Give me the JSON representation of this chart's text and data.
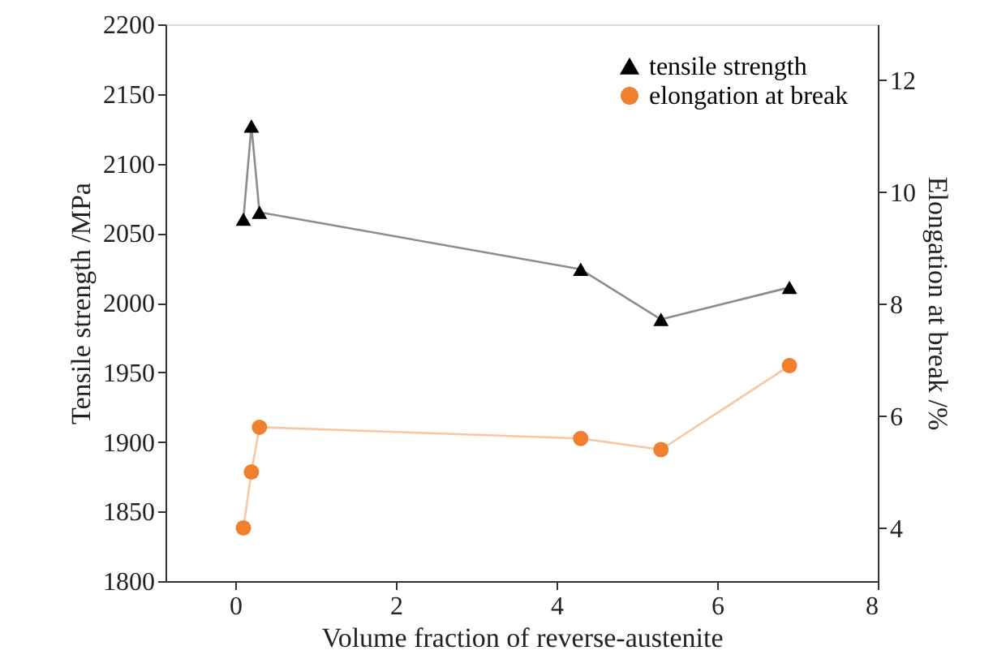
{
  "chart_data": {
    "type": "line",
    "xlabel": "Volume fraction of reverse-austenite",
    "ylabel": "Tensile strength /MPa",
    "y2label": "Elongation at break /%",
    "xlim": [
      -0.87,
      8
    ],
    "xticks": [
      0,
      2,
      4,
      6,
      8
    ],
    "ylim": [
      1800,
      2200
    ],
    "yticks": [
      1800,
      1850,
      1900,
      1950,
      2000,
      2050,
      2100,
      2150,
      2200
    ],
    "y2lim": [
      3.05,
      13.0
    ],
    "y2ticks": [
      4,
      6,
      8,
      10,
      12
    ],
    "grid": false,
    "legend": "top right",
    "series": [
      {
        "name": "tensile strength",
        "color": "#000000",
        "marker": "triangle",
        "x": [
          0.1,
          0.2,
          0.3,
          4.3,
          5.3,
          6.9
        ],
        "values": [
          2060,
          2127,
          2065,
          2024,
          1988,
          2011
        ]
      },
      {
        "name": "elongation at break",
        "color": "#f08030",
        "marker": "circle",
        "axis": "y2",
        "x": [
          0.1,
          0.2,
          0.3,
          4.3,
          5.3,
          6.9
        ],
        "values": [
          4.0,
          5.0,
          5.8,
          5.6,
          5.4,
          6.9
        ]
      }
    ]
  }
}
